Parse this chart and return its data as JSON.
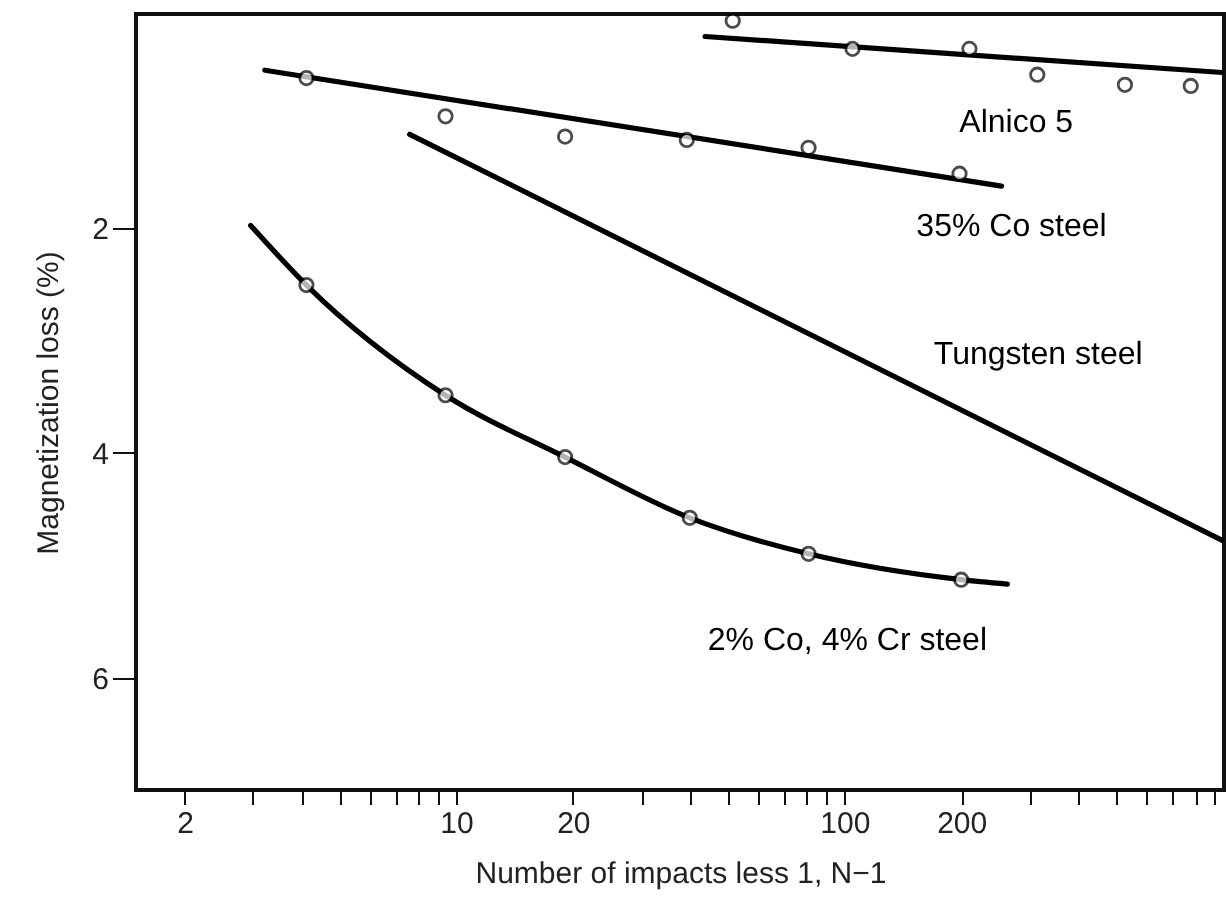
{
  "chart_data": {
    "type": "line",
    "xlabel": "Number of impacts less 1, N−1",
    "ylabel": "Magnetization loss (%)",
    "log": "x",
    "xlim": [
      1.5,
      950
    ],
    "ylim": [
      7,
      0.1
    ],
    "xticks": [
      2,
      {
        "value": 3,
        "label": null
      },
      {
        "value": 4,
        "label": null
      },
      {
        "value": 5,
        "label": null
      },
      {
        "value": 6,
        "label": null
      },
      {
        "value": 7,
        "label": null
      },
      {
        "value": 8,
        "label": null
      },
      {
        "value": 9,
        "label": null
      },
      10,
      20,
      {
        "value": 30,
        "label": null
      },
      {
        "value": 40,
        "label": null
      },
      {
        "value": 50,
        "label": null
      },
      {
        "value": 60,
        "label": null
      },
      {
        "value": 70,
        "label": null
      },
      {
        "value": 80,
        "label": null
      },
      {
        "value": 90,
        "label": null
      },
      100,
      200,
      {
        "value": 300,
        "label": null
      },
      {
        "value": 400,
        "label": null
      },
      {
        "value": 500,
        "label": null
      },
      {
        "value": 600,
        "label": null
      },
      {
        "value": 700,
        "label": null
      },
      {
        "value": 800,
        "label": null
      },
      {
        "value": 900,
        "label": null
      }
    ],
    "yticks": [
      2,
      4,
      6
    ],
    "grid": false,
    "line_style": "solid",
    "series": [
      {
        "name": "Alnico 5",
        "color": "#000000",
        "x": [
          43.8,
          940
        ],
        "values": [
          0.3,
          0.62
        ]
      },
      {
        "type": "scatter",
        "marker": "circle",
        "color": "#000000",
        "x": [
          51.6,
          105,
          210,
          314,
          528,
          780
        ],
        "values": [
          0.16,
          0.41,
          0.41,
          0.64,
          0.73,
          0.74
        ]
      },
      {
        "name": "35% Co steel",
        "color": "#000000",
        "x": [
          3.22,
          254
        ],
        "values": [
          0.6,
          1.63
        ]
      },
      {
        "type": "scatter",
        "marker": "circle",
        "color": "#000000",
        "x": [
          4.12,
          9.4,
          19.1,
          39.3,
          80.9,
          198
        ],
        "values": [
          0.67,
          1.01,
          1.19,
          1.22,
          1.29,
          1.52
        ]
      },
      {
        "name": "Tungsten steel",
        "color": "#000000",
        "x": [
          7.6,
          940
        ],
        "values": [
          1.17,
          4.78
        ]
      },
      {
        "name": "2% Co, 4% Cr steel",
        "color": "#000000",
        "x": [
          2.96,
          4.12,
          9.4,
          19.1,
          40,
          80.9,
          200,
          263
        ],
        "values": [
          1.98,
          2.51,
          3.49,
          4.04,
          4.58,
          4.9,
          5.13,
          5.17
        ]
      },
      {
        "type": "scatter",
        "marker": "circle",
        "color": "#000000",
        "x": [
          4.12,
          9.4,
          19.1,
          40,
          80.9,
          200
        ],
        "values": [
          2.51,
          3.49,
          4.04,
          4.58,
          4.9,
          5.13
        ]
      }
    ]
  }
}
